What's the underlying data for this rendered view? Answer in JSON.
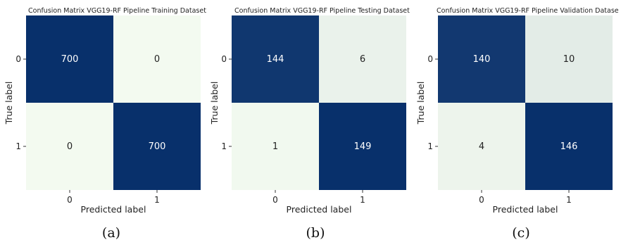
{
  "panels": [
    {
      "caption": "(a)"
    },
    {
      "caption": "(b)"
    },
    {
      "caption": "(c)"
    }
  ],
  "colors": {
    "high": "#08306b",
    "mid": "#0d4a8c",
    "low": "#f3faf0",
    "lowAlt": "#ebf7e6",
    "textOnDark": "#ffffff",
    "textOnLight": "#222222"
  },
  "chart_data": [
    {
      "type": "heatmap",
      "title": "Confusion Matrix VGG19-RF Pipeline Training Dataset",
      "xlabel": "Predicted label",
      "ylabel": "True label",
      "x_categories": [
        "0",
        "1"
      ],
      "y_categories": [
        "0",
        "1"
      ],
      "values": [
        [
          700,
          0
        ],
        [
          0,
          700
        ]
      ],
      "colormap": "Blues"
    },
    {
      "type": "heatmap",
      "title": "Confusion Matrix VGG19-RF Pipeline Testing Dataset",
      "xlabel": "Predicted label",
      "ylabel": "True label",
      "x_categories": [
        "0",
        "1"
      ],
      "y_categories": [
        "0",
        "1"
      ],
      "values": [
        [
          144,
          6
        ],
        [
          1,
          149
        ]
      ],
      "colormap": "Blues"
    },
    {
      "type": "heatmap",
      "title": "Confusion Matrix VGG19-RF Pipeline Validation Datase",
      "xlabel": "Predicted label",
      "ylabel": "True label",
      "x_categories": [
        "0",
        "1"
      ],
      "y_categories": [
        "0",
        "1"
      ],
      "values": [
        [
          140,
          10
        ],
        [
          4,
          146
        ]
      ],
      "colormap": "Blues"
    }
  ]
}
